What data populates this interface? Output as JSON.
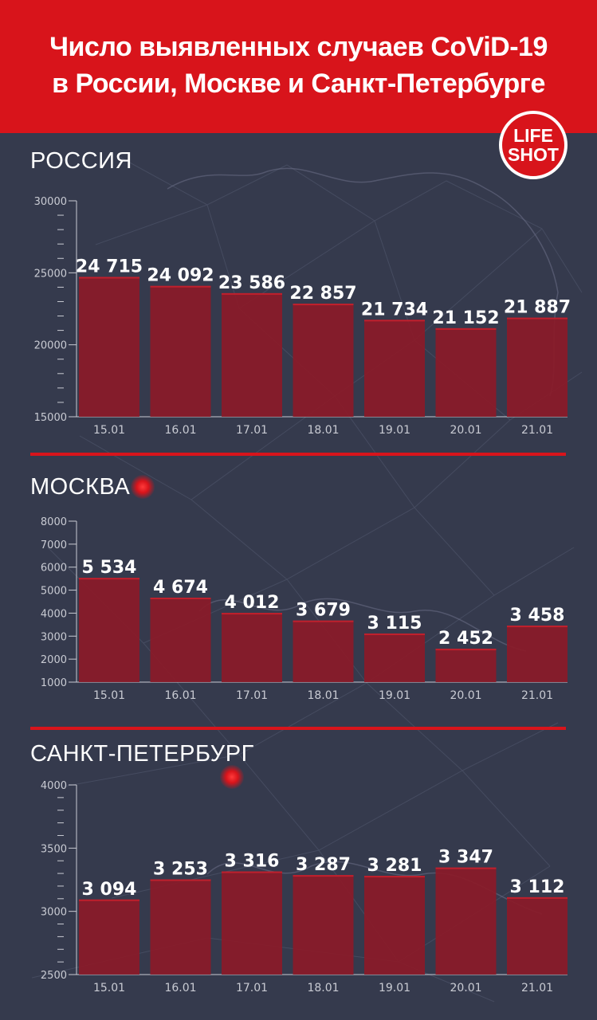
{
  "header": {
    "title_line1": "Число выявленных случаев CoViD-19",
    "title_line2": "в России, Москве и Санкт-Петербурге"
  },
  "logo": {
    "line1": "LIFE",
    "line2": "SHOT"
  },
  "colors": {
    "header": "#d8141b",
    "background": "#353a4d",
    "bar": "#8b1a28",
    "axis": "#c9cbd3"
  },
  "sections": [
    {
      "title": "РОССИЯ"
    },
    {
      "title": "МОСКВА"
    },
    {
      "title": "САНКТ-ПЕТЕРБУРГ"
    }
  ],
  "chart_data": [
    {
      "type": "bar",
      "title": "РОССИЯ",
      "categories": [
        "15.01",
        "16.01",
        "17.01",
        "18.01",
        "19.01",
        "20.01",
        "21.01"
      ],
      "values": [
        24715,
        24092,
        23586,
        22857,
        21734,
        21152,
        21887
      ],
      "value_labels": [
        "24 715",
        "24 092",
        "23 586",
        "22 857",
        "21 734",
        "21 152",
        "21 887"
      ],
      "ylim": [
        15000,
        30000
      ],
      "yticks": [
        15000,
        20000,
        25000,
        30000
      ]
    },
    {
      "type": "bar",
      "title": "МОСКВА",
      "categories": [
        "15.01",
        "16.01",
        "17.01",
        "18.01",
        "19.01",
        "20.01",
        "21.01"
      ],
      "values": [
        5534,
        4674,
        4012,
        3679,
        3115,
        2452,
        3458
      ],
      "value_labels": [
        "5 534",
        "4 674",
        "4 012",
        "3 679",
        "3 115",
        "2 452",
        "3 458"
      ],
      "ylim": [
        1000,
        8000
      ],
      "yticks": [
        1000,
        2000,
        3000,
        4000,
        5000,
        6000,
        7000,
        8000
      ]
    },
    {
      "type": "bar",
      "title": "САНКТ-ПЕТЕРБУРГ",
      "categories": [
        "15.01",
        "16.01",
        "17.01",
        "18.01",
        "19.01",
        "20.01",
        "21.01"
      ],
      "values": [
        3094,
        3253,
        3316,
        3287,
        3281,
        3347,
        3112
      ],
      "value_labels": [
        "3 094",
        "3 253",
        "3 316",
        "3 287",
        "3 281",
        "3 347",
        "3 112"
      ],
      "ylim": [
        2500,
        4000
      ],
      "yticks": [
        2500,
        3000,
        3500,
        4000
      ]
    }
  ]
}
